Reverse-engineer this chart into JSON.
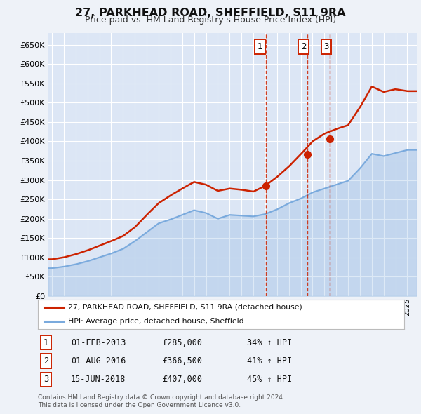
{
  "title": "27, PARKHEAD ROAD, SHEFFIELD, S11 9RA",
  "subtitle": "Price paid vs. HM Land Registry's House Price Index (HPI)",
  "background_color": "#eef2f8",
  "plot_bg_color": "#dce6f5",
  "grid_color": "#ffffff",
  "red_line_color": "#cc2200",
  "blue_line_color": "#7aaadd",
  "vline_color": "#cc2200",
  "marker_color": "#cc2200",
  "sale_years": [
    2013.08,
    2016.58,
    2018.46
  ],
  "sale_prices": [
    285000,
    366500,
    407000
  ],
  "sale_labels": [
    "1",
    "2",
    "3"
  ],
  "legend_entries": [
    "27, PARKHEAD ROAD, SHEFFIELD, S11 9RA (detached house)",
    "HPI: Average price, detached house, Sheffield"
  ],
  "table_rows": [
    [
      "1",
      "01-FEB-2013",
      "£285,000",
      "34% ↑ HPI"
    ],
    [
      "2",
      "01-AUG-2016",
      "£366,500",
      "41% ↑ HPI"
    ],
    [
      "3",
      "15-JUN-2018",
      "£407,000",
      "45% ↑ HPI"
    ]
  ],
  "footer": "Contains HM Land Registry data © Crown copyright and database right 2024.\nThis data is licensed under the Open Government Licence v3.0.",
  "xstart": 1994.7,
  "xend": 2025.8,
  "ylim": [
    0,
    680000
  ],
  "yticks": [
    0,
    50000,
    100000,
    150000,
    200000,
    250000,
    300000,
    350000,
    400000,
    450000,
    500000,
    550000,
    600000,
    650000
  ],
  "hpi_anchors_years": [
    1995,
    1996,
    1997,
    1998,
    1999,
    2000,
    2001,
    2002,
    2003,
    2004,
    2005,
    2006,
    2007,
    2008,
    2009,
    2010,
    2011,
    2012,
    2013,
    2014,
    2015,
    2016,
    2017,
    2018,
    2019,
    2020,
    2021,
    2022,
    2023,
    2024,
    2025
  ],
  "hpi_anchors_vals": [
    72000,
    76000,
    82000,
    90000,
    100000,
    110000,
    122000,
    142000,
    165000,
    188000,
    198000,
    210000,
    222000,
    215000,
    200000,
    210000,
    208000,
    206000,
    212000,
    224000,
    240000,
    252000,
    268000,
    278000,
    288000,
    298000,
    330000,
    368000,
    362000,
    370000,
    378000
  ],
  "house_anchors_years": [
    1995,
    1996,
    1997,
    1998,
    1999,
    2000,
    2001,
    2002,
    2003,
    2004,
    2005,
    2006,
    2007,
    2008,
    2009,
    2010,
    2011,
    2012,
    2013,
    2014,
    2015,
    2016,
    2017,
    2018,
    2019,
    2020,
    2021,
    2022,
    2023,
    2024,
    2025
  ],
  "house_anchors_vals": [
    95000,
    100000,
    108000,
    118000,
    130000,
    142000,
    155000,
    178000,
    210000,
    240000,
    260000,
    278000,
    295000,
    288000,
    272000,
    278000,
    275000,
    270000,
    285000,
    308000,
    335000,
    366500,
    400000,
    420000,
    432000,
    442000,
    488000,
    542000,
    528000,
    535000,
    530000
  ]
}
